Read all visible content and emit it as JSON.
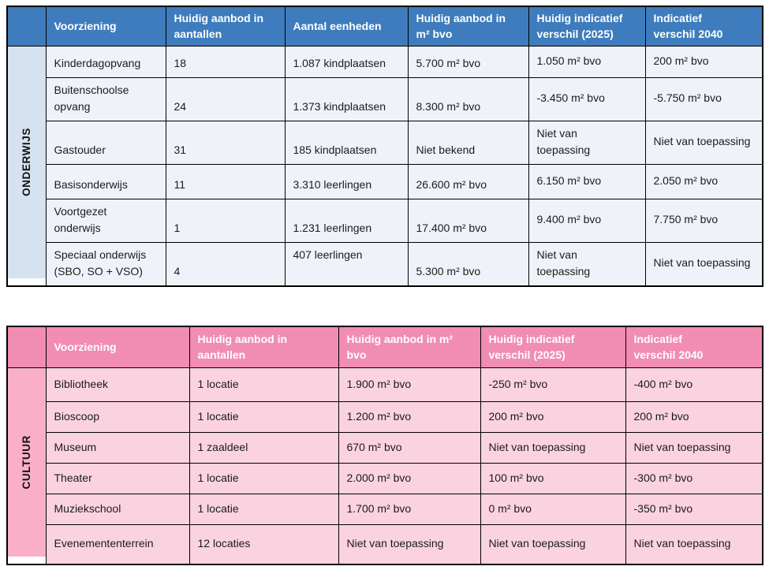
{
  "tables": {
    "onderwijs": {
      "category": "ONDERWIJS",
      "columns": [
        "Voorziening",
        "Huidig aanbod in\naantallen",
        "Aantal eenheden",
        "Huidig aanbod in\nm² bvo",
        "Huidig indicatief\nverschil (2025)",
        "Indicatief\nverschil 2040"
      ],
      "rows": [
        [
          "Kinderdagopvang",
          "18",
          "1.087 kindplaatsen",
          "5.700 m² bvo",
          "1.050 m² bvo",
          "200 m² bvo"
        ],
        [
          "Buitenschoolse\nopvang",
          "24",
          "1.373 kindplaatsen",
          "8.300 m² bvo",
          "-3.450 m² bvo",
          "-5.750 m² bvo"
        ],
        [
          "Gastouder",
          "31",
          "185 kindplaatsen",
          "Niet bekend",
          "Niet van\ntoepassing",
          "Niet van toepassing"
        ],
        [
          "Basisonderwijs",
          "11",
          "3.310 leerlingen",
          "26.600 m² bvo",
          "6.150 m² bvo",
          "2.050 m² bvo"
        ],
        [
          "Voortgezet\nonderwijs",
          "1",
          "1.231 leerlingen",
          "17.400 m² bvo",
          "9.400 m² bvo",
          "7.750 m² bvo"
        ],
        [
          "Speciaal onderwijs\n(SBO, SO + VSO)",
          "4",
          "407 leerlingen",
          "5.300 m² bvo",
          "Niet van\ntoepassing",
          "Niet van toepassing"
        ]
      ],
      "colors": {
        "header_bg": "#3E7CBD",
        "header_text": "#FFFFFF",
        "label_bg": "#D7E2F0",
        "row_bg": "#EFF3F9"
      }
    },
    "cultuur": {
      "category": "CULTUUR",
      "columns": [
        "Voorziening",
        "Huidig aanbod in\naantallen",
        "Huidig aanbod in m²\nbvo",
        "Huidig indicatief\nverschil (2025)",
        "Indicatief\nverschil 2040"
      ],
      "rows": [
        [
          "Bibliotheek",
          "1 locatie",
          "1.900 m² bvo",
          "-250 m² bvo",
          "-400 m² bvo"
        ],
        [
          "Bioscoop",
          "1 locatie",
          "1.200 m² bvo",
          "200 m² bvo",
          "200 m² bvo"
        ],
        [
          "Museum",
          "1 zaaldeel",
          "670 m² bvo",
          "Niet van toepassing",
          "Niet van toepassing"
        ],
        [
          "Theater",
          "1 locatie",
          "2.000 m² bvo",
          "100 m² bvo",
          "-300 m² bvo"
        ],
        [
          "Muziekschool",
          "1 locatie",
          "1.700 m² bvo",
          "0 m² bvo",
          "-350 m² bvo"
        ],
        [
          "Evenemententerrein",
          "12 locaties",
          "Niet van toepassing",
          "Niet van toepassing",
          "Niet van toepassing"
        ]
      ],
      "colors": {
        "header_bg": "#F18CB2",
        "header_text": "#FFFFFF",
        "label_bg": "#FAAFC9",
        "row_bg": "#FBD3E0"
      }
    }
  },
  "border_color": "#000000",
  "text_color": "#1B1B1B"
}
